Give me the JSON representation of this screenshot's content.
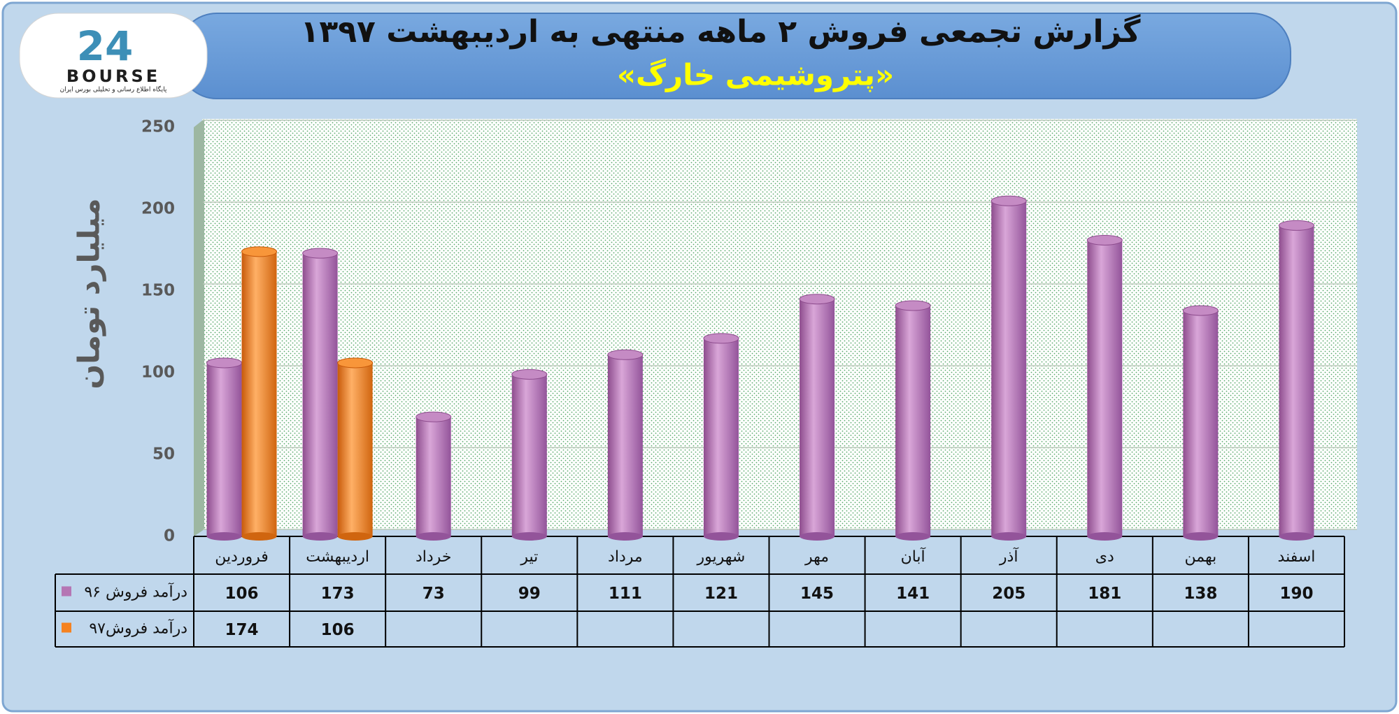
{
  "logo": {
    "mark": "24",
    "name": "BOURSE",
    "tagline": "پایگاه اطلاع رسانی و تحلیلی بورس ایران"
  },
  "chart_data": {
    "type": "bar",
    "title": "گزارش تجمعی فروش ۲ ماهه منتهی به اردیبهشت ۱۳۹۷",
    "subtitle": "«پتروشیمی خارگ»",
    "y_label": "میلیارد تومان",
    "categories": [
      "فروردین",
      "اردیبهشت",
      "خرداد",
      "تیر",
      "مرداد",
      "شهریور",
      "مهر",
      "آبان",
      "آذر",
      "دی",
      "بهمن",
      "اسفند"
    ],
    "series": [
      {
        "name": "درآمد فروش ۹۶",
        "color": "#b576b4",
        "values": [
          106,
          173,
          73,
          99,
          111,
          121,
          145,
          141,
          205,
          181,
          138,
          190
        ]
      },
      {
        "name": "درآمد فروش۹۷",
        "color": "#f58220",
        "values": [
          174,
          106,
          null,
          null,
          null,
          null,
          null,
          null,
          null,
          null,
          null,
          null
        ]
      }
    ],
    "ylim": [
      0,
      250
    ],
    "yticks": [
      0,
      50,
      100,
      150,
      200,
      250
    ],
    "grid": true
  }
}
